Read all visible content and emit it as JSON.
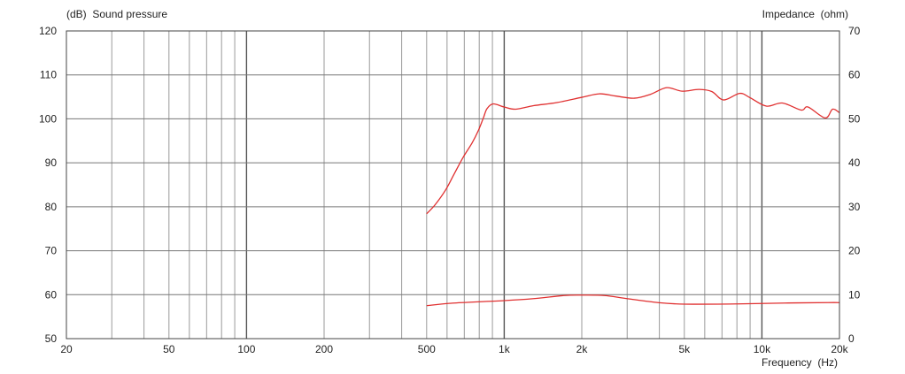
{
  "chart_data": {
    "type": "line",
    "title": "",
    "xlabel": "Frequency  (Hz)",
    "ylabel": "(dB)  Sound pressure",
    "y2label": "Impedance  (ohm)",
    "xscale": "log",
    "xlim": [
      20,
      20000
    ],
    "ylim": [
      50,
      120
    ],
    "y2lim": [
      0,
      70
    ],
    "grid": true,
    "x_ticks": [
      20,
      50,
      100,
      200,
      500,
      1000,
      2000,
      5000,
      10000,
      20000
    ],
    "x_tick_labels": [
      "20",
      "50",
      "100",
      "200",
      "500",
      "1k",
      "2k",
      "5k",
      "10k",
      "20k"
    ],
    "y_ticks": [
      50,
      60,
      70,
      80,
      90,
      100,
      110,
      120
    ],
    "y_tick_labels": [
      "50",
      "60",
      "70",
      "80",
      "90",
      "100",
      "110",
      "120"
    ],
    "y2_ticks": [
      0,
      10,
      20,
      30,
      40,
      50,
      60,
      70
    ],
    "y2_tick_labels": [
      "0",
      "10",
      "20",
      "30",
      "40",
      "50",
      "60",
      "70"
    ],
    "series": [
      {
        "axis": "left",
        "color": "#e03030",
        "x": [
          500,
          540,
          592,
          640,
          692,
          750,
          793,
          830,
          857,
          906,
          1000,
          1110,
          1300,
          1600,
          2000,
          2340,
          2700,
          3200,
          3700,
          4270,
          4900,
          5700,
          6400,
          7100,
          8200,
          9000,
          10400,
          12000,
          14200,
          15100,
          17600,
          18800,
          20000
        ],
        "y": [
          78.4,
          80.5,
          83.8,
          87.5,
          91.2,
          94.5,
          97.3,
          100.2,
          102.3,
          103.4,
          102.7,
          102.2,
          103.0,
          103.7,
          104.9,
          105.7,
          105.2,
          104.7,
          105.6,
          107.1,
          106.3,
          106.7,
          106.2,
          104.3,
          105.8,
          104.8,
          102.9,
          103.6,
          102.0,
          102.7,
          100.2,
          102.2,
          101.4
        ]
      },
      {
        "axis": "right",
        "color": "#e03030",
        "x": [
          500,
          640,
          1000,
          1300,
          1700,
          2000,
          2450,
          3000,
          3950,
          5000,
          8000,
          12300,
          18000,
          20000
        ],
        "y": [
          7.5,
          8.1,
          8.65,
          9.1,
          9.8,
          9.9,
          9.8,
          9.1,
          8.2,
          7.85,
          7.9,
          8.1,
          8.2,
          8.2
        ]
      }
    ]
  }
}
